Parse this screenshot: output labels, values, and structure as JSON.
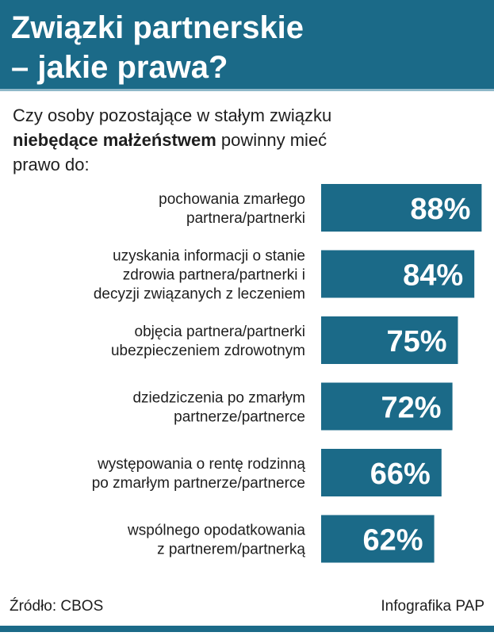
{
  "chart_data": {
    "type": "bar",
    "orientation": "horizontal",
    "title": [
      "Związki partnerskie",
      "– jakie prawa?"
    ],
    "subtitle": [
      "Czy osoby pozostające w stałym związku",
      "niebędące małżeństwem",
      "powinny mieć",
      "prawo do:"
    ],
    "categories": [
      [
        "pochowania zmarłego",
        "partnera/partnerki"
      ],
      [
        "uzyskania informacji o stanie",
        "zdrowia partnera/partnerki i",
        "decyzji związanych z leczeniem"
      ],
      [
        "objęcia partnera/partnerki",
        "ubezpieczeniem zdrowotnym"
      ],
      [
        "dziedziczenia po zmarłym",
        "partnerze/partnerce"
      ],
      [
        "występowania o rentę rodzinną",
        "po zmarłym partnerze/partnerce"
      ],
      [
        "wspólnego opodatkowania",
        "z partnerem/partnerką"
      ]
    ],
    "values": [
      88,
      84,
      75,
      72,
      66,
      62
    ],
    "value_labels": [
      "88%",
      "84%",
      "75%",
      "72%",
      "66%",
      "62%"
    ],
    "color": "#1b6a88",
    "source": "Źródło: CBOS",
    "credit": "Infografika PAP"
  }
}
